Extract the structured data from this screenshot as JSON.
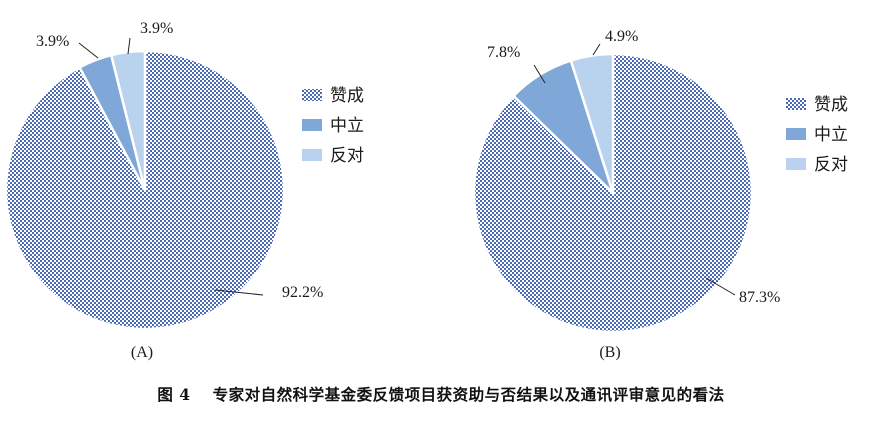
{
  "chart_data": [
    {
      "type": "pie",
      "panel_label": "(A)",
      "slices": [
        {
          "label": "赞成",
          "value": 92.2,
          "value_label": "92.2%",
          "color": "#4a6bb3",
          "pattern": "checkered"
        },
        {
          "label": "中立",
          "value": 3.9,
          "value_label": "3.9%",
          "color": "#7fa8d8"
        },
        {
          "label": "反对",
          "value": 3.9,
          "value_label": "3.9%",
          "color": "#b9d3ef"
        }
      ],
      "legend": [
        "赞成",
        "中立",
        "反对"
      ],
      "legend_position": "right"
    },
    {
      "type": "pie",
      "panel_label": "(B)",
      "slices": [
        {
          "label": "赞成",
          "value": 87.3,
          "value_label": "87.3%",
          "color": "#4a6bb3",
          "pattern": "checkered"
        },
        {
          "label": "中立",
          "value": 7.8,
          "value_label": "7.8%",
          "color": "#7fa8d8"
        },
        {
          "label": "反对",
          "value": 4.9,
          "value_label": "4.9%",
          "color": "#b9d3ef"
        }
      ],
      "legend": [
        "赞成",
        "中立",
        "反对"
      ],
      "legend_position": "right"
    }
  ],
  "caption": {
    "figure_number": "图 4",
    "text": "专家对自然科学基金委反馈项目获资助与否结果以及通讯评审意见的看法"
  }
}
